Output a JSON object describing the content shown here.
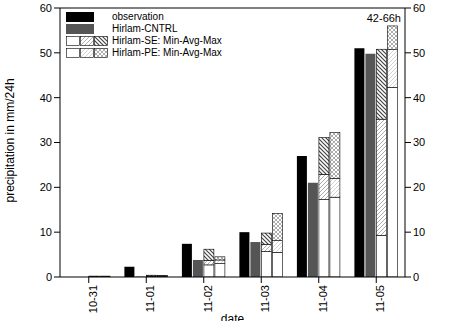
{
  "chart_data": {
    "type": "bar",
    "annotations": [
      "42-66h"
    ],
    "x_label": "date",
    "y_label": "precipitation in mm/24h",
    "categories": [
      "10-31",
      "11-01",
      "11-02",
      "11-03",
      "11-04",
      "11-05"
    ],
    "series": [
      {
        "name": "observation",
        "color": "#000000",
        "values": [
          0,
          2.3,
          7.4,
          10,
          27,
          51
        ]
      },
      {
        "name": "Hirlam-CNTRL",
        "color": "#555555",
        "values": [
          0,
          0.1,
          3.8,
          7.8,
          21,
          49.8
        ]
      },
      {
        "name": "Hirlam-SE: Min-Avg-Max",
        "color": "#444444",
        "min": [
          0.1,
          0.1,
          2.7,
          5.7,
          17.3,
          9.3
        ],
        "values": [
          0.15,
          0.2,
          3.7,
          7.3,
          22.9,
          35.2
        ],
        "max": [
          0.2,
          0.4,
          6.2,
          9.8,
          31.1,
          50.8
        ]
      },
      {
        "name": "Hirlam-PE: Min-Avg-Max",
        "color": "#999999",
        "min": [
          0.1,
          0.1,
          3,
          5.5,
          17.8,
          42.3
        ],
        "values": [
          0.15,
          0.2,
          3.8,
          8.1,
          22,
          50.7
        ],
        "max": [
          0.2,
          0.3,
          4.5,
          14.2,
          32.2,
          56
        ]
      }
    ],
    "ylim": [
      0,
      60
    ],
    "yticks": [
      0,
      10,
      20,
      30,
      40,
      50,
      60
    ],
    "y2lim": [
      0,
      60
    ],
    "y2ticks": [
      0,
      10,
      20,
      30,
      40,
      50,
      60
    ],
    "legend": "upper left"
  }
}
